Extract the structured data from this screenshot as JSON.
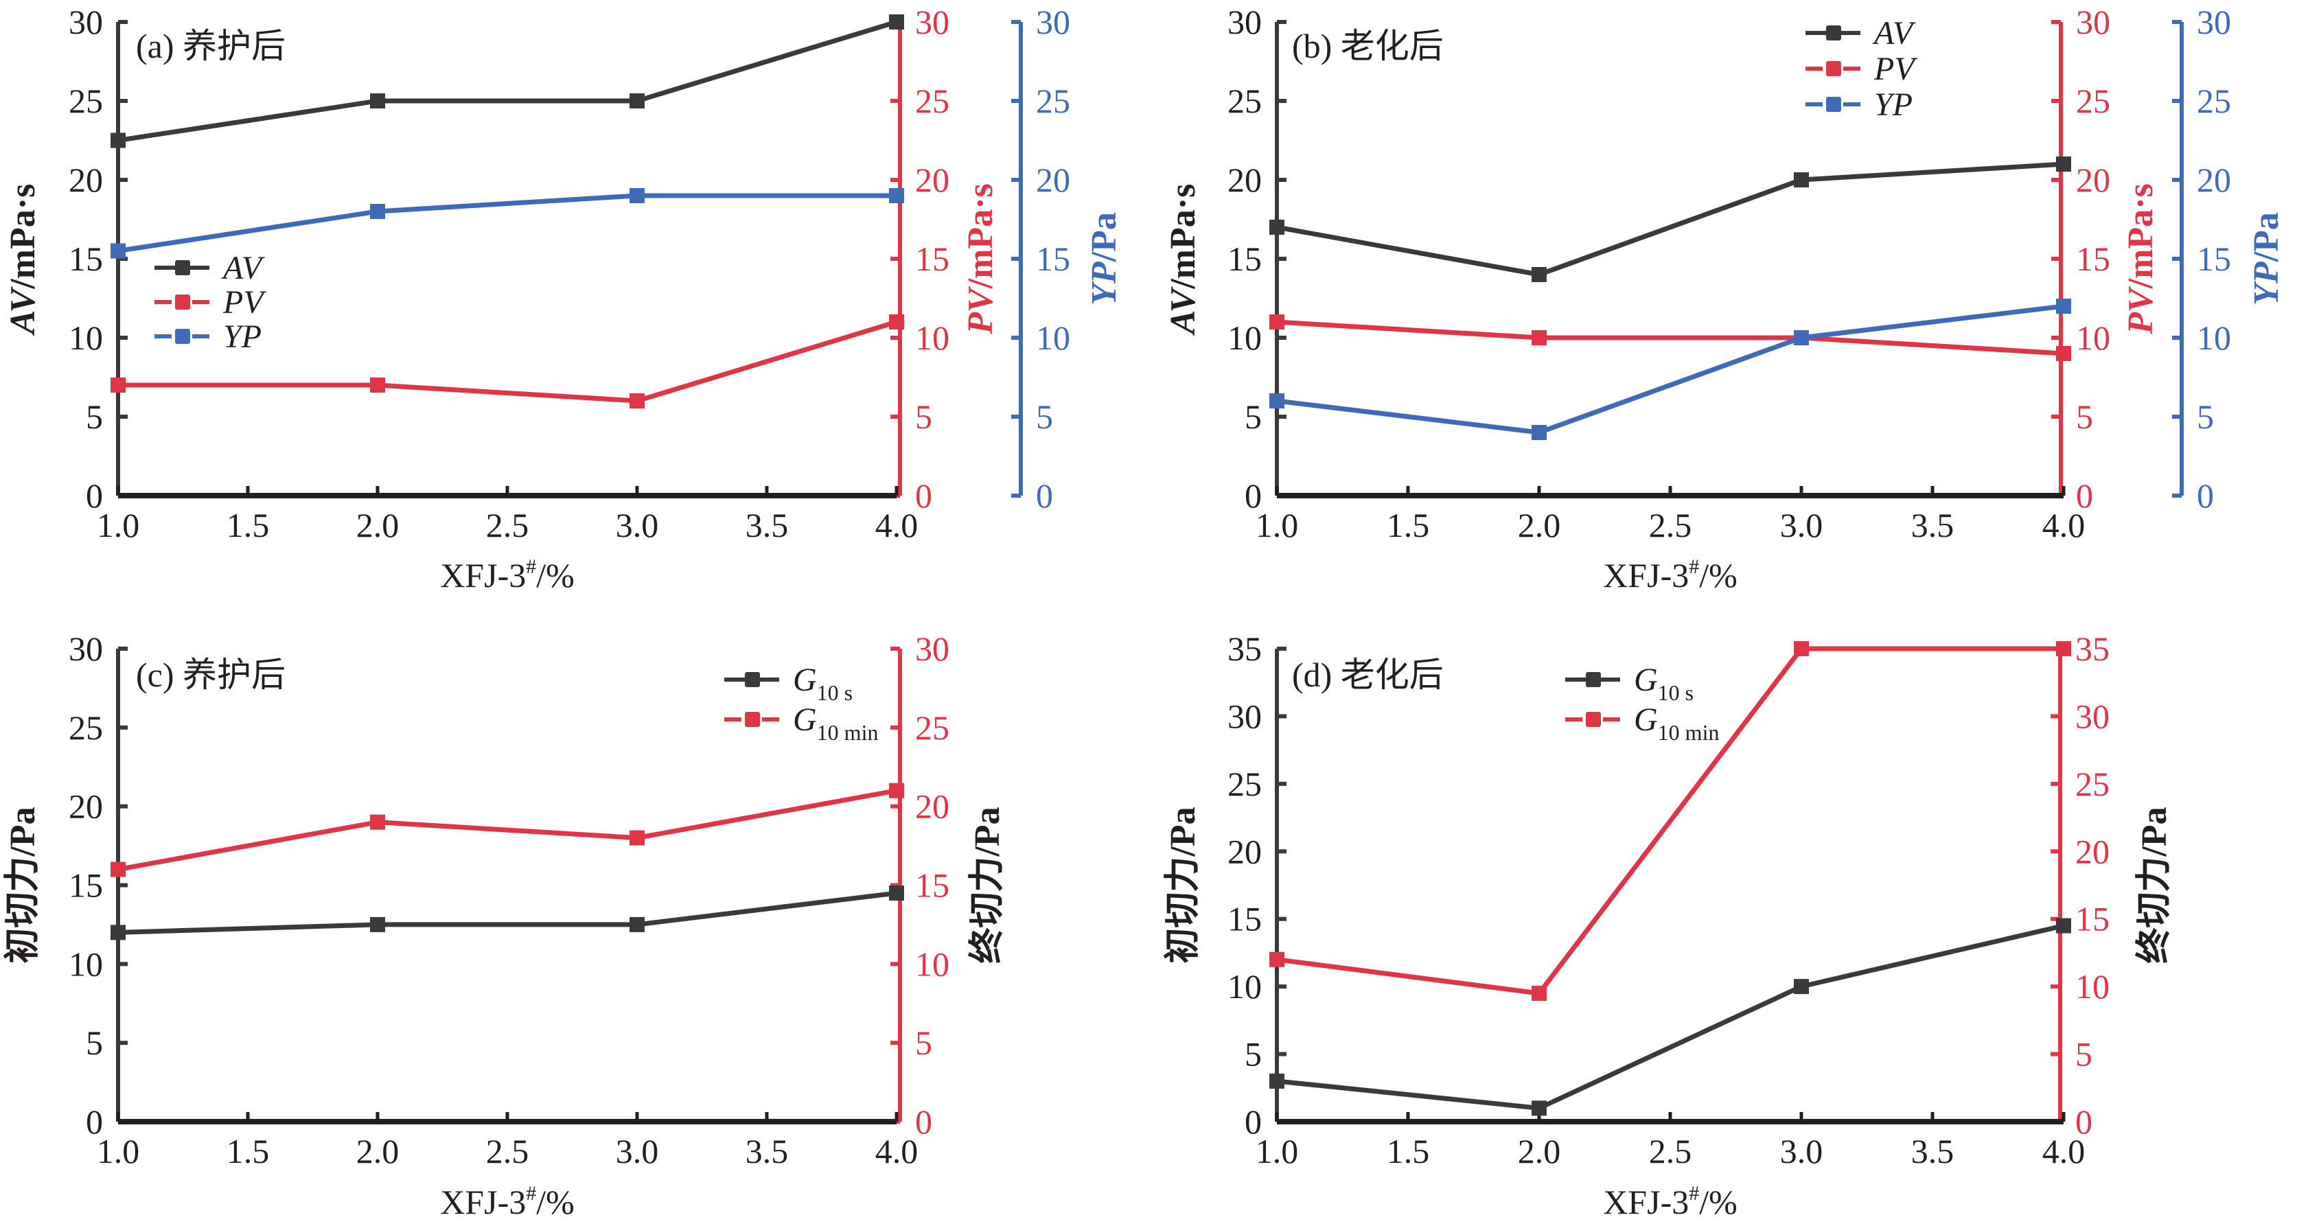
{
  "colors": {
    "black": "#3a3a3c",
    "axis_black": "#231f20",
    "red": "#e03447",
    "blue": "#3f6ab8"
  },
  "chart_data": [
    {
      "id": "a",
      "type": "line",
      "panel_label": "(a) 养护后",
      "x": [
        1.0,
        2.0,
        3.0,
        4.0
      ],
      "xlabel": "XFJ-3#/%",
      "xlabel_main": "XFJ-3",
      "xlabel_sup": "#",
      "xlabel_tail": "/%",
      "xlim": [
        1.0,
        4.0
      ],
      "xticks": [
        "1.0",
        "1.5",
        "2.0",
        "2.5",
        "3.0",
        "3.5",
        "4.0"
      ],
      "axes": [
        {
          "key": "left",
          "label_italic": "AV",
          "label_rest": "/mPa·s",
          "ylim": [
            0,
            30
          ],
          "ticks": [
            "0",
            "5",
            "10",
            "15",
            "20",
            "25",
            "30"
          ],
          "color": "black"
        },
        {
          "key": "right1",
          "label_italic": "PV",
          "label_rest": "/mPa·s",
          "ylim": [
            0,
            30
          ],
          "ticks": [
            "0",
            "5",
            "10",
            "15",
            "20",
            "25",
            "30"
          ],
          "color": "red"
        },
        {
          "key": "right2",
          "label_italic": "YP",
          "label_rest": "/Pa",
          "ylim": [
            0,
            30
          ],
          "ticks": [
            "0",
            "5",
            "10",
            "15",
            "20",
            "25",
            "30"
          ],
          "color": "blue"
        }
      ],
      "series": [
        {
          "name": "AV",
          "axis": "left",
          "color": "black",
          "values": [
            22.5,
            25,
            25,
            30
          ]
        },
        {
          "name": "PV",
          "axis": "right1",
          "color": "red",
          "values": [
            7,
            7,
            6,
            11
          ]
        },
        {
          "name": "YP",
          "axis": "right2",
          "color": "blue",
          "values": [
            15.5,
            18,
            19,
            19
          ]
        }
      ],
      "legend": {
        "position": "middle-left",
        "entries": [
          {
            "text": "AV",
            "sub": ""
          },
          {
            "text": "PV",
            "sub": ""
          },
          {
            "text": "YP",
            "sub": ""
          }
        ]
      }
    },
    {
      "id": "b",
      "type": "line",
      "panel_label": "(b) 老化后",
      "x": [
        1.0,
        2.0,
        3.0,
        4.0
      ],
      "xlabel": "XFJ-3#/%",
      "xlabel_main": "XFJ-3",
      "xlabel_sup": "#",
      "xlabel_tail": "/%",
      "xlim": [
        1.0,
        4.0
      ],
      "xticks": [
        "1.0",
        "1.5",
        "2.0",
        "2.5",
        "3.0",
        "3.5",
        "4.0"
      ],
      "axes": [
        {
          "key": "left",
          "label_italic": "AV",
          "label_rest": "/mPa·s",
          "ylim": [
            0,
            30
          ],
          "ticks": [
            "0",
            "5",
            "10",
            "15",
            "20",
            "25",
            "30"
          ],
          "color": "black"
        },
        {
          "key": "right1",
          "label_italic": "PV",
          "label_rest": "/mPa·s",
          "ylim": [
            0,
            30
          ],
          "ticks": [
            "0",
            "5",
            "10",
            "15",
            "20",
            "25",
            "30"
          ],
          "color": "red"
        },
        {
          "key": "right2",
          "label_italic": "YP",
          "label_rest": "/Pa",
          "ylim": [
            0,
            30
          ],
          "ticks": [
            "0",
            "5",
            "10",
            "15",
            "20",
            "25",
            "30"
          ],
          "color": "blue"
        }
      ],
      "series": [
        {
          "name": "AV",
          "axis": "left",
          "color": "black",
          "values": [
            17,
            14,
            20,
            21
          ]
        },
        {
          "name": "PV",
          "axis": "right1",
          "color": "red",
          "values": [
            11,
            10,
            10,
            9
          ]
        },
        {
          "name": "YP",
          "axis": "right2",
          "color": "blue",
          "values": [
            6,
            4,
            10,
            12
          ]
        }
      ],
      "legend": {
        "position": "top-right",
        "entries": [
          {
            "text": "AV",
            "sub": ""
          },
          {
            "text": "PV",
            "sub": ""
          },
          {
            "text": "YP",
            "sub": ""
          }
        ]
      }
    },
    {
      "id": "c",
      "type": "line",
      "panel_label": "(c) 养护后",
      "x": [
        1.0,
        2.0,
        3.0,
        4.0
      ],
      "xlabel": "XFJ-3#/%",
      "xlabel_main": "XFJ-3",
      "xlabel_sup": "#",
      "xlabel_tail": "/%",
      "xlim": [
        1.0,
        4.0
      ],
      "xticks": [
        "1.0",
        "1.5",
        "2.0",
        "2.5",
        "3.0",
        "3.5",
        "4.0"
      ],
      "axes": [
        {
          "key": "left",
          "label_italic": "",
          "label_rest": "初切力/Pa",
          "ylim": [
            0,
            30
          ],
          "ticks": [
            "0",
            "5",
            "10",
            "15",
            "20",
            "25",
            "30"
          ],
          "color": "black"
        },
        {
          "key": "right1",
          "label_italic": "",
          "label_rest": "终切力/Pa",
          "ylim": [
            0,
            30
          ],
          "ticks": [
            "0",
            "5",
            "10",
            "15",
            "20",
            "25",
            "30"
          ],
          "color": "red"
        }
      ],
      "series": [
        {
          "name": "G10 s",
          "axis": "left",
          "color": "black",
          "values": [
            12,
            12.5,
            12.5,
            14.5
          ]
        },
        {
          "name": "G10 min",
          "axis": "right1",
          "color": "red",
          "values": [
            16,
            19,
            18,
            21
          ]
        }
      ],
      "legend": {
        "position": "top-right",
        "entries": [
          {
            "text": "G",
            "sub": "10 s"
          },
          {
            "text": "G",
            "sub": "10 min"
          }
        ]
      }
    },
    {
      "id": "d",
      "type": "line",
      "panel_label": "(d) 老化后",
      "x": [
        1.0,
        2.0,
        3.0,
        4.0
      ],
      "xlabel": "XFJ-3#/%",
      "xlabel_main": "XFJ-3",
      "xlabel_sup": "#",
      "xlabel_tail": "/%",
      "xlim": [
        1.0,
        4.0
      ],
      "xticks": [
        "1.0",
        "1.5",
        "2.0",
        "2.5",
        "3.0",
        "3.5",
        "4.0"
      ],
      "axes": [
        {
          "key": "left",
          "label_italic": "",
          "label_rest": "初切力/Pa",
          "ylim": [
            0,
            35
          ],
          "ticks": [
            "0",
            "5",
            "10",
            "15",
            "20",
            "25",
            "30",
            "35"
          ],
          "color": "black"
        },
        {
          "key": "right1",
          "label_italic": "",
          "label_rest": "终切力/Pa",
          "ylim": [
            0,
            35
          ],
          "ticks": [
            "0",
            "5",
            "10",
            "15",
            "20",
            "25",
            "30",
            "35"
          ],
          "color": "red"
        }
      ],
      "series": [
        {
          "name": "G10 s",
          "axis": "left",
          "color": "black",
          "values": [
            3,
            1,
            10,
            14.5
          ]
        },
        {
          "name": "G10 min",
          "axis": "right1",
          "color": "red",
          "values": [
            12,
            9.5,
            35,
            35
          ]
        }
      ],
      "legend": {
        "position": "top-center",
        "entries": [
          {
            "text": "G",
            "sub": "10 s"
          },
          {
            "text": "G",
            "sub": "10 min"
          }
        ]
      }
    }
  ]
}
